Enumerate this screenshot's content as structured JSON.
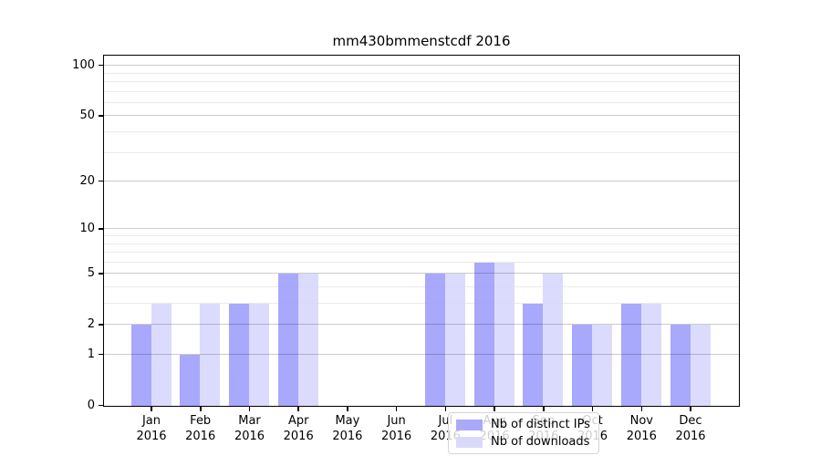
{
  "title": "mm430bmmenstcdf 2016",
  "legend": {
    "entries": [
      {
        "label": "Nb of distinct IPs",
        "swatch_color": "#a9a9f8"
      },
      {
        "label": "Nb of downloads",
        "swatch_color": "#dadaf8"
      }
    ]
  },
  "chart_data": {
    "type": "bar",
    "title": "mm430bmmenstcdf 2016",
    "categories": [
      "Jan 2016",
      "Feb 2016",
      "Mar 2016",
      "Apr 2016",
      "May 2016",
      "Jun 2016",
      "Jul 2016",
      "Aug 2016",
      "Sep 2016",
      "Oct 2016",
      "Nov 2016",
      "Dec 2016"
    ],
    "series": [
      {
        "name": "Nb of distinct IPs",
        "color": "rgba(155,155,252,0.87)",
        "values": [
          2,
          1,
          3,
          5,
          0,
          0,
          5,
          6,
          3,
          2,
          3,
          2
        ]
      },
      {
        "name": "Nb of downloads",
        "color": "rgba(214,214,253,0.87)",
        "values": [
          3,
          3,
          3,
          5,
          0,
          0,
          5,
          6,
          5,
          2,
          3,
          2
        ]
      }
    ],
    "xlabel": "",
    "ylabel": "",
    "yscale": "log10(1+x)",
    "ylim": [
      0,
      114
    ],
    "yticks": [
      0,
      1,
      2,
      5,
      10,
      20,
      50,
      100
    ],
    "minor_yticks": [
      3,
      4,
      6,
      7,
      8,
      9,
      30,
      40,
      60,
      70,
      80,
      90
    ],
    "grid": "horizontal",
    "legend_position": "lower center"
  }
}
